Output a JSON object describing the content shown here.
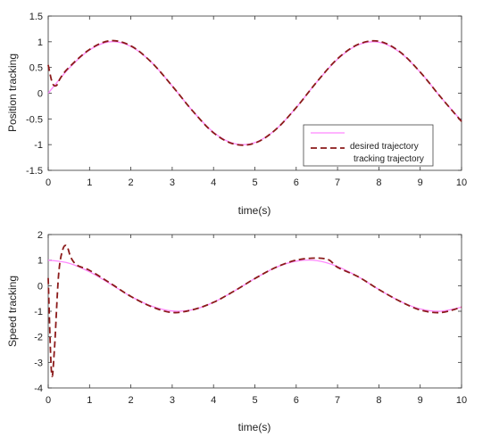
{
  "chart_data": [
    {
      "type": "line",
      "xlabel": "time(s)",
      "ylabel": "Position tracking",
      "xlim": [
        0,
        10
      ],
      "ylim": [
        -1.5,
        1.5
      ],
      "xticks": [
        "0",
        "1",
        "2",
        "3",
        "4",
        "5",
        "6",
        "7",
        "8",
        "9",
        "10"
      ],
      "yticks": [
        "-1.5",
        "-1",
        "-0.5",
        "0",
        "0.5",
        "1",
        "1.5"
      ],
      "grid": false,
      "legend_position": "lower-right",
      "series": [
        {
          "name": "desired trajectory",
          "color": "#ff88ff",
          "style": "solid",
          "x": [
            0,
            0.5,
            1,
            1.5,
            2,
            2.5,
            3,
            3.5,
            4,
            4.5,
            5,
            5.5,
            6,
            6.5,
            7,
            7.5,
            8,
            8.5,
            9,
            9.5,
            10
          ],
          "y": [
            0.0,
            0.48,
            0.84,
            1.0,
            0.91,
            0.6,
            0.14,
            -0.35,
            -0.76,
            -0.98,
            -0.96,
            -0.71,
            -0.28,
            0.22,
            0.66,
            0.94,
            0.99,
            0.8,
            0.41,
            -0.08,
            -0.54
          ]
        },
        {
          "name": "tracking trajectory",
          "color": "#8b1a1a",
          "style": "dashed",
          "x": [
            0,
            0.1,
            0.2,
            0.3,
            0.5,
            1,
            1.5,
            2,
            2.5,
            3,
            3.5,
            4,
            4.5,
            5,
            5.5,
            6,
            6.5,
            7,
            7.5,
            8,
            8.5,
            9,
            9.5,
            10
          ],
          "y": [
            0.55,
            0.2,
            0.15,
            0.3,
            0.5,
            0.85,
            1.02,
            0.92,
            0.6,
            0.14,
            -0.35,
            -0.77,
            -0.99,
            -0.97,
            -0.71,
            -0.28,
            0.22,
            0.67,
            0.95,
            1.01,
            0.81,
            0.41,
            -0.08,
            -0.55
          ]
        }
      ]
    },
    {
      "type": "line",
      "xlabel": "time(s)",
      "ylabel": "Speed tracking",
      "xlim": [
        0,
        10
      ],
      "ylim": [
        -4,
        2
      ],
      "xticks": [
        "0",
        "1",
        "2",
        "3",
        "4",
        "5",
        "6",
        "7",
        "8",
        "9",
        "10"
      ],
      "yticks": [
        "-4",
        "-3",
        "-2",
        "-1",
        "0",
        "1",
        "2"
      ],
      "grid": false,
      "series": [
        {
          "color": "#ff88ff",
          "style": "solid",
          "x": [
            0,
            0.5,
            1,
            1.5,
            2,
            2.5,
            3,
            3.5,
            4,
            4.5,
            5,
            5.5,
            6,
            6.5,
            7,
            7.5,
            8,
            8.5,
            9,
            9.5,
            10
          ],
          "y": [
            1.0,
            0.88,
            0.54,
            0.07,
            -0.42,
            -0.8,
            -0.99,
            -0.94,
            -0.65,
            -0.21,
            0.28,
            0.71,
            0.96,
            0.98,
            0.75,
            0.35,
            -0.15,
            -0.6,
            -0.91,
            -1.0,
            -0.84
          ]
        },
        {
          "color": "#8b1a1a",
          "style": "dashed",
          "x": [
            0,
            0.08,
            0.15,
            0.25,
            0.35,
            0.45,
            0.55,
            0.7,
            1,
            1.5,
            2,
            2.5,
            3,
            3.5,
            4,
            4.5,
            5,
            5.5,
            6,
            6.5,
            6.8,
            7,
            7.5,
            8,
            8.5,
            9,
            9.5,
            10
          ],
          "y": [
            0.3,
            -3.4,
            -2.5,
            0.4,
            1.4,
            1.55,
            1.1,
            0.8,
            0.6,
            0.1,
            -0.42,
            -0.82,
            -1.05,
            -0.94,
            -0.65,
            -0.21,
            0.28,
            0.71,
            1.0,
            1.08,
            1.0,
            0.72,
            0.35,
            -0.15,
            -0.6,
            -0.95,
            -1.05,
            -0.84
          ]
        }
      ]
    }
  ]
}
